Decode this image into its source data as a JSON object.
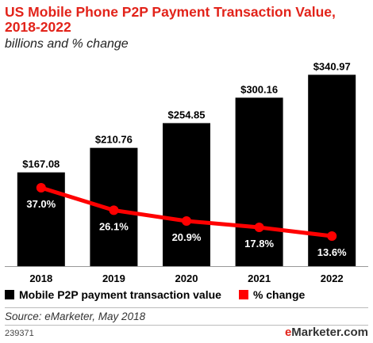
{
  "title": "US Mobile Phone P2P Payment Transaction Value, 2018-2022",
  "subtitle": "billions and % change",
  "legend": {
    "bar_label": "Mobile P2P payment transaction value",
    "line_label": "% change"
  },
  "source": "Source: eMarketer, May 2018",
  "chart_id": "239371",
  "brand": {
    "e": "e",
    "rest": "Marketer.com"
  },
  "colors": {
    "bar": "#000000",
    "line": "#ff0000",
    "title": "#e2231a"
  },
  "chart_data": {
    "type": "bar",
    "categories": [
      "2018",
      "2019",
      "2020",
      "2021",
      "2022"
    ],
    "series": [
      {
        "name": "Mobile P2P payment transaction value",
        "type": "bar",
        "values": [
          167.08,
          210.76,
          254.85,
          300.16,
          340.97
        ],
        "labels": [
          "$167.08",
          "$210.76",
          "$254.85",
          "$300.16",
          "$340.97"
        ]
      },
      {
        "name": "% change",
        "type": "line",
        "values": [
          37.0,
          26.1,
          20.9,
          17.8,
          13.6
        ],
        "labels": [
          "37.0%",
          "26.1%",
          "20.9%",
          "17.8%",
          "13.6%"
        ]
      }
    ],
    "ylim": [
      0,
      350
    ],
    "grid": false,
    "legend_position": "bottom"
  }
}
